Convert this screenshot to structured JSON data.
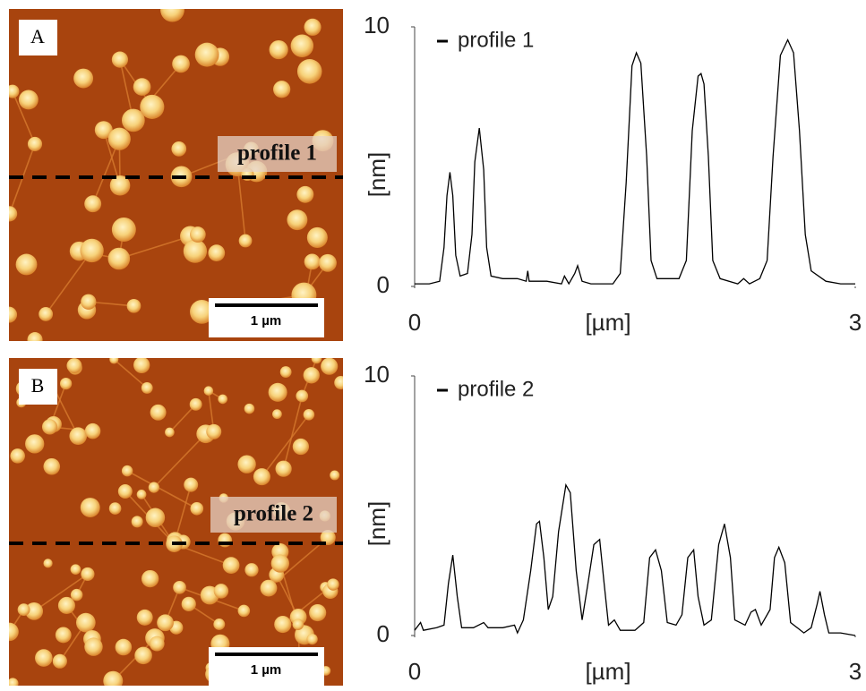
{
  "panels": [
    {
      "label": "A",
      "profile_label": "profile 1",
      "scale_bar": "1 µm"
    },
    {
      "label": "B",
      "profile_label": "profile 2",
      "scale_bar": "1 µm"
    }
  ],
  "chart_data": [
    {
      "type": "line",
      "xlabel": "[µm]",
      "ylabel": "[nm]",
      "xlim": [
        0,
        3
      ],
      "ylim": [
        0,
        10
      ],
      "xticks": [
        0,
        3
      ],
      "yticks": [
        0,
        10
      ],
      "legend": "upper left",
      "x": [
        0,
        0.1,
        0.17,
        0.2,
        0.22,
        0.24,
        0.26,
        0.28,
        0.31,
        0.36,
        0.39,
        0.41,
        0.44,
        0.47,
        0.49,
        0.52,
        0.6,
        0.7,
        0.76,
        0.77,
        0.78,
        0.9,
        1.0,
        1.02,
        1.05,
        1.09,
        1.11,
        1.14,
        1.2,
        1.35,
        1.4,
        1.44,
        1.48,
        1.51,
        1.54,
        1.58,
        1.61,
        1.65,
        1.8,
        1.85,
        1.89,
        1.93,
        1.95,
        1.97,
        2.0,
        2.03,
        2.08,
        2.2,
        2.24,
        2.28,
        2.35,
        2.4,
        2.44,
        2.49,
        2.54,
        2.58,
        2.62,
        2.66,
        2.7,
        2.8,
        2.9,
        3.0
      ],
      "series": [
        {
          "name": "profile 1",
          "color": "#000000",
          "values": [
            0.1,
            0.1,
            0.2,
            1.5,
            3.5,
            4.4,
            3.5,
            1.2,
            0.4,
            0.5,
            2,
            4.8,
            6.1,
            4.5,
            1.5,
            0.4,
            0.3,
            0.3,
            0.2,
            0.6,
            0.2,
            0.2,
            0.1,
            0.4,
            0.1,
            0.5,
            0.8,
            0.2,
            0.1,
            0.1,
            0.5,
            4,
            8.5,
            9.0,
            8.6,
            5,
            1,
            0.3,
            0.3,
            1,
            6,
            8.1,
            8.2,
            7.8,
            5,
            1,
            0.3,
            0.1,
            0.3,
            0.1,
            0.3,
            1,
            5,
            8.9,
            9.5,
            9.0,
            6,
            2,
            0.6,
            0.2,
            0.1,
            0.1
          ]
        }
      ]
    },
    {
      "type": "line",
      "xlabel": "[µm]",
      "ylabel": "[nm]",
      "xlim": [
        0,
        3
      ],
      "ylim": [
        0,
        10
      ],
      "xticks": [
        0,
        3
      ],
      "yticks": [
        0,
        10
      ],
      "legend": "upper left",
      "x": [
        0,
        0.04,
        0.06,
        0.15,
        0.2,
        0.23,
        0.26,
        0.29,
        0.32,
        0.4,
        0.47,
        0.5,
        0.6,
        0.68,
        0.7,
        0.74,
        0.79,
        0.83,
        0.85,
        0.88,
        0.91,
        0.94,
        0.98,
        1.03,
        1.06,
        1.1,
        1.14,
        1.18,
        1.22,
        1.26,
        1.29,
        1.32,
        1.36,
        1.4,
        1.5,
        1.56,
        1.6,
        1.64,
        1.68,
        1.72,
        1.78,
        1.82,
        1.86,
        1.9,
        1.93,
        1.97,
        2.02,
        2.07,
        2.11,
        2.15,
        2.18,
        2.25,
        2.29,
        2.32,
        2.36,
        2.42,
        2.45,
        2.48,
        2.52,
        2.56,
        2.65,
        2.7,
        2.74,
        2.76,
        2.79,
        2.82,
        2.9,
        3.0
      ],
      "series": [
        {
          "name": "profile 2",
          "color": "#000000",
          "values": [
            0.2,
            0.5,
            0.2,
            0.3,
            0.4,
            2,
            3.1,
            1.5,
            0.3,
            0.3,
            0.5,
            0.3,
            0.3,
            0.4,
            0.1,
            0.6,
            2.5,
            4.3,
            4.4,
            3,
            1,
            1.5,
            4,
            5.8,
            5.5,
            2.5,
            0.6,
            2,
            3.5,
            3.7,
            2,
            0.4,
            0.6,
            0.2,
            0.2,
            0.5,
            3,
            3.3,
            2.5,
            0.5,
            0.4,
            0.8,
            3,
            3.3,
            1.5,
            0.4,
            0.6,
            3.5,
            4.3,
            3,
            0.6,
            0.4,
            0.9,
            1.0,
            0.4,
            1,
            3,
            3.4,
            2.8,
            0.5,
            0.1,
            0.3,
            1.2,
            1.7,
            0.8,
            0.1,
            0.1,
            0.0
          ]
        }
      ]
    }
  ]
}
